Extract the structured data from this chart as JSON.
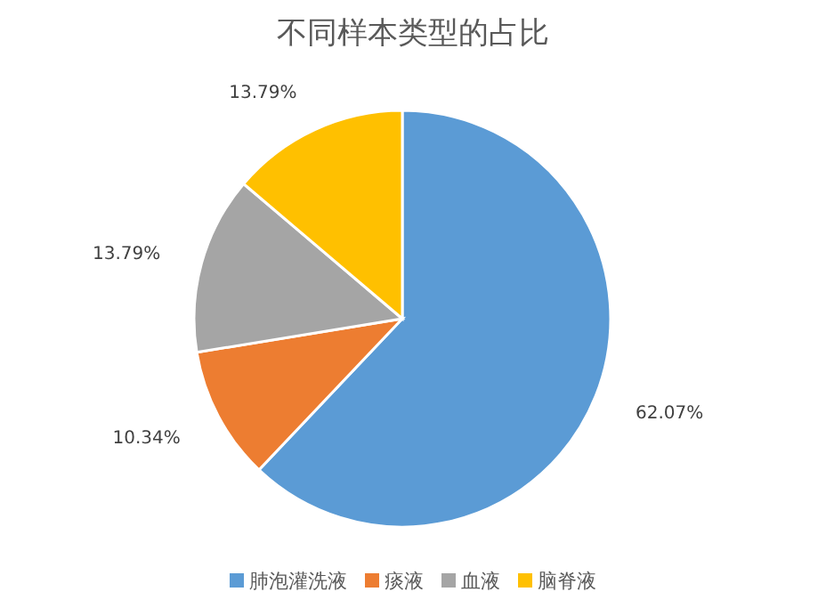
{
  "chart_data": {
    "type": "pie",
    "title": "不同样本类型的占比",
    "categories": [
      "肺泡灌洗液",
      "痰液",
      "血液",
      "脑脊液"
    ],
    "values": [
      62.07,
      10.34,
      13.79,
      13.79
    ],
    "colors": [
      "#5b9bd5",
      "#ed7d31",
      "#a5a5a5",
      "#ffc000"
    ],
    "value_labels": [
      "62.07%",
      "10.34%",
      "13.79%",
      "13.79%"
    ],
    "legend": "bottom"
  }
}
